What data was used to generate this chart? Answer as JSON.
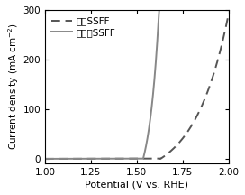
{
  "title": "",
  "xlabel": "Potential (V vs. RHE)",
  "ylabel": "Current density (mA cm$^{-2}$)",
  "xlim": [
    1.0,
    2.0
  ],
  "ylim": [
    -10,
    300
  ],
  "yticks": [
    0,
    100,
    200,
    300
  ],
  "xticks": [
    1.0,
    1.25,
    1.5,
    1.75,
    2.0
  ],
  "legend": [
    "空白SSFF",
    "反应后SSFF"
  ],
  "line_color_blank": "#555555",
  "line_color_reaction": "#888888",
  "background_color": "#ffffff",
  "blank_onset": 1.63,
  "reaction_onset": 1.535
}
